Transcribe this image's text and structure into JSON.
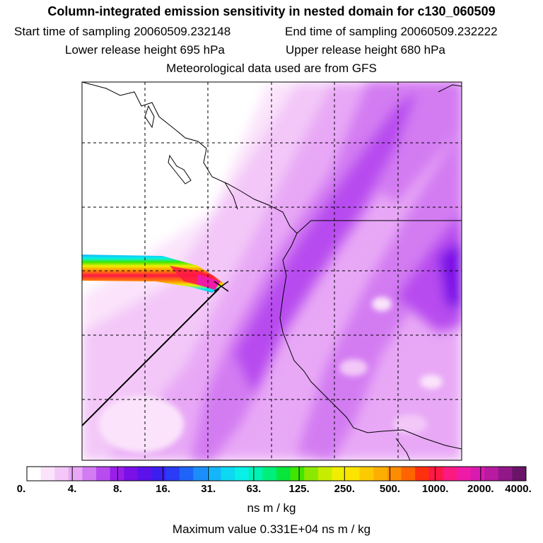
{
  "title": "Column-integrated emission sensitivity in nested domain for c130_060509",
  "sampling": {
    "start": "Start time of sampling 20060509.232148",
    "end": "End time of sampling 20060509.232222"
  },
  "release": {
    "lower": "Lower release height  695 hPa",
    "upper": "Upper release height  680 hPa"
  },
  "met_note": "Meteorological data used are from GFS",
  "colorbar": {
    "labels": [
      "0.",
      "4.",
      "8.",
      "16.",
      "31.",
      "63.",
      "125.",
      "250.",
      "500.",
      "1000.",
      "2000.",
      "4000."
    ],
    "colors": [
      "#ffffff",
      "#fbe4fb",
      "#f3c8f8",
      "#e8a8f6",
      "#d37bf2",
      "#b84cef",
      "#9a1ee8",
      "#7a10e6",
      "#5c12ea",
      "#3d1ef0",
      "#2a3cf5",
      "#1f64f8",
      "#1b8efa",
      "#14b6f9",
      "#0fd8f2",
      "#08f0e8",
      "#00f2b4",
      "#00ee7a",
      "#08e63c",
      "#40e600",
      "#8ce800",
      "#c8ec00",
      "#f0ee00",
      "#fae400",
      "#fcca00",
      "#feae00",
      "#fe8c00",
      "#fe6400",
      "#fe3010",
      "#fe1844",
      "#fb1a80",
      "#f01aa8",
      "#d81ab0",
      "#b81aa0",
      "#901888",
      "#6a1468"
    ]
  },
  "units": "ns m / kg",
  "max_value": "Maximum value  0.331E+04 ns m / kg"
}
